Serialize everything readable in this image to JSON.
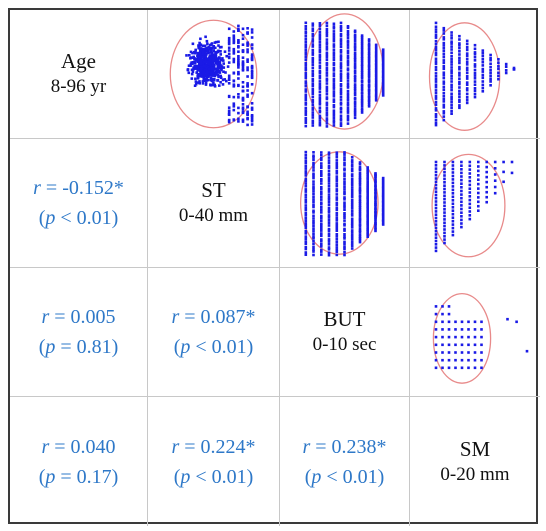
{
  "chart_data": {
    "type": "scatter",
    "variables": [
      {
        "name": "Age",
        "range": "8-96 yr"
      },
      {
        "name": "ST",
        "range": "0-40 mm"
      },
      {
        "name": "BUT",
        "range": "0-10 sec"
      },
      {
        "name": "SM",
        "range": "0-20 mm"
      }
    ],
    "correlations": [
      {
        "row": 1,
        "col": 0,
        "r_text": "r = -0.152*",
        "p_text": "(p < 0.01)"
      },
      {
        "row": 2,
        "col": 0,
        "r_text": "r = 0.005",
        "p_text": "(p = 0.81)"
      },
      {
        "row": 2,
        "col": 1,
        "r_text": "r = 0.087*",
        "p_text": "(p < 0.01)"
      },
      {
        "row": 3,
        "col": 0,
        "r_text": "r = 0.040",
        "p_text": "(p = 0.17)"
      },
      {
        "row": 3,
        "col": 1,
        "r_text": "r = 0.224*",
        "p_text": "(p < 0.01)"
      },
      {
        "row": 3,
        "col": 2,
        "r_text": "r = 0.238*",
        "p_text": "(p < 0.01)"
      }
    ],
    "scatter_panels": [
      {
        "row": 0,
        "col": 1,
        "pattern": "cloud",
        "ellipse": [
          0.5,
          0.5,
          0.33,
          0.42
        ]
      },
      {
        "row": 0,
        "col": 2,
        "pattern": "columns",
        "n_cols": 12,
        "ellipse": [
          0.5,
          0.48,
          0.3,
          0.45
        ]
      },
      {
        "row": 0,
        "col": 3,
        "pattern": "columns-sparse",
        "n_cols": 11,
        "ellipse": [
          0.42,
          0.52,
          0.27,
          0.42
        ]
      },
      {
        "row": 1,
        "col": 2,
        "pattern": "columns",
        "n_cols": 11,
        "ellipse": [
          0.46,
          0.5,
          0.3,
          0.4
        ]
      },
      {
        "row": 1,
        "col": 3,
        "pattern": "triangle",
        "n_cols": 10,
        "ellipse": [
          0.45,
          0.52,
          0.28,
          0.4
        ]
      },
      {
        "row": 2,
        "col": 3,
        "pattern": "grid",
        "n_cols": 8,
        "ellipse": [
          0.4,
          0.55,
          0.22,
          0.35
        ]
      }
    ],
    "colors": {
      "points": "#1a1ae6",
      "ellipse": "#e88a8a",
      "correlation_text": "#2e78c8"
    }
  }
}
